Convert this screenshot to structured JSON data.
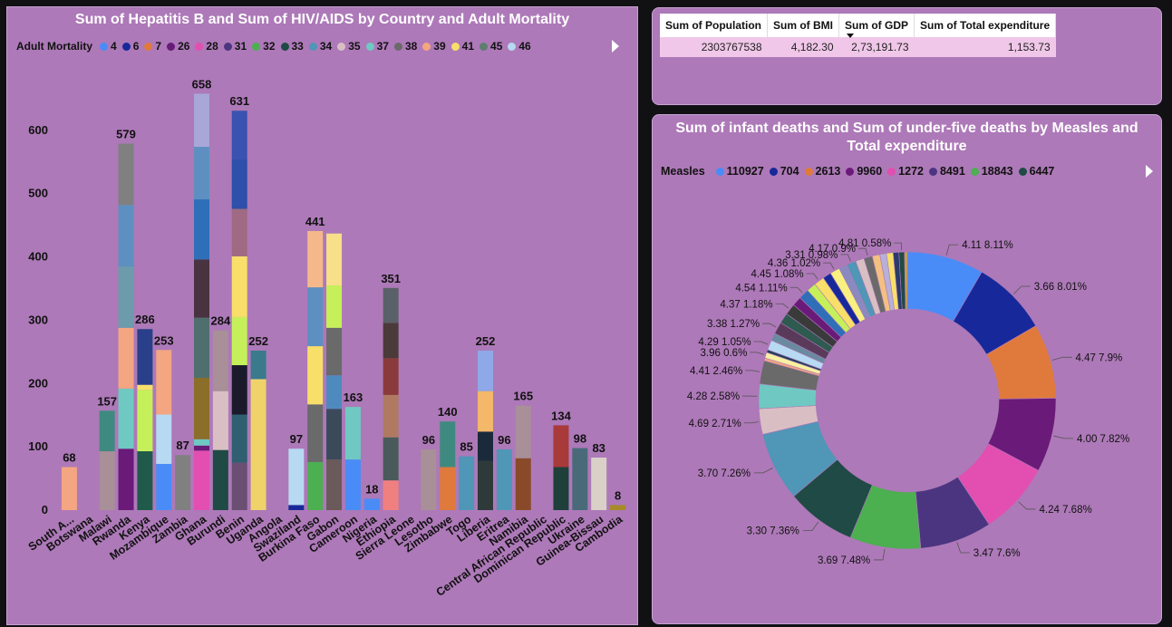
{
  "bar_chart": {
    "title": "Sum of Hepatitis B and Sum of HIV/AIDS by Country and Adult Mortality",
    "legend_title": "Adult Mortality",
    "legend": [
      {
        "label": "4",
        "color": "#4a8cf7"
      },
      {
        "label": "6",
        "color": "#17299a"
      },
      {
        "label": "7",
        "color": "#e07a3c"
      },
      {
        "label": "26",
        "color": "#6a1a78"
      },
      {
        "label": "28",
        "color": "#e24fb0"
      },
      {
        "label": "31",
        "color": "#4b3580"
      },
      {
        "label": "32",
        "color": "#4caf50"
      },
      {
        "label": "33",
        "color": "#204a45"
      },
      {
        "label": "34",
        "color": "#4f96b7"
      },
      {
        "label": "35",
        "color": "#d9bfc3"
      },
      {
        "label": "37",
        "color": "#6fc9c2"
      },
      {
        "label": "38",
        "color": "#6a6a6a"
      },
      {
        "label": "39",
        "color": "#f4a582"
      },
      {
        "label": "41",
        "color": "#f8df6a"
      },
      {
        "label": "45",
        "color": "#5d7f6e"
      },
      {
        "label": "46",
        "color": "#b7d9f2"
      }
    ]
  },
  "chart_data": [
    {
      "type": "bar",
      "stacked": true,
      "title": "Sum of Hepatitis B and Sum of HIV/AIDS by Country and Adult Mortality",
      "xlabel": "",
      "ylabel": "",
      "ylim": [
        0,
        680
      ],
      "yticks": [
        0,
        100,
        200,
        300,
        400,
        500,
        600
      ],
      "categories": [
        "South A...",
        "Botswana",
        "Malawi",
        "Rwanda",
        "Kenya",
        "Mozambique",
        "Zambia",
        "Ghana",
        "Burundi",
        "Benin",
        "Uganda",
        "Angola",
        "Swaziland",
        "Burkina Faso",
        "Gabon",
        "Cameroon",
        "Nigeria",
        "Ethiopia",
        "Sierra Leone",
        "Lesotho",
        "Zimbabwe",
        "Togo",
        "Liberia",
        "Eritrea",
        "Namibia",
        "Central African Republic",
        "Dominican Republic",
        "Ukraine",
        "Guinea-Bissau",
        "Cambodia"
      ],
      "bars": [
        {
          "total": 68,
          "segments": [
            {
              "v": 68,
              "c": "#f4a582"
            }
          ]
        },
        {
          "total": 0,
          "segments": []
        },
        {
          "total": 157,
          "segments": [
            {
              "v": 93,
              "c": "#a88f98"
            },
            {
              "v": 64,
              "c": "#3f8a80"
            }
          ]
        },
        {
          "total": 579,
          "segments": [
            {
              "v": 97,
              "c": "#6a1a78"
            },
            {
              "v": 95,
              "c": "#6fc9c2"
            },
            {
              "v": 96,
              "c": "#f4a582"
            },
            {
              "v": 97,
              "c": "#6c9bab"
            },
            {
              "v": 97,
              "c": "#5d90c0"
            },
            {
              "v": 97,
              "c": "#808080"
            }
          ]
        },
        {
          "total": 286,
          "segments": [
            {
              "v": 93,
              "c": "#1f5a4a"
            },
            {
              "v": 97,
              "c": "#c6f05a"
            },
            {
              "v": 8,
              "c": "#f8df6a"
            },
            {
              "v": 88,
              "c": "#2a3f8a"
            }
          ]
        },
        {
          "total": 253,
          "segments": [
            {
              "v": 73,
              "c": "#4a8cf7"
            },
            {
              "v": 78,
              "c": "#b7d9f2"
            },
            {
              "v": 102,
              "c": "#f4a582"
            }
          ]
        },
        {
          "total": 87,
          "segments": [
            {
              "v": 87,
              "c": "#808080"
            }
          ]
        },
        {
          "total": 658,
          "segments": [
            {
              "v": 94,
              "c": "#e24fb0"
            },
            {
              "v": 8,
              "c": "#6a1a78"
            },
            {
              "v": 10,
              "c": "#6fc9c2"
            },
            {
              "v": 97,
              "c": "#8b6e2a"
            },
            {
              "v": 95,
              "c": "#4f6f6e"
            },
            {
              "v": 92,
              "c": "#4a3340"
            },
            {
              "v": 95,
              "c": "#2f6fb8"
            },
            {
              "v": 83,
              "c": "#5d90c0"
            },
            {
              "v": 84,
              "c": "#a9a6d8"
            }
          ]
        },
        {
          "total": 284,
          "segments": [
            {
              "v": 95,
              "c": "#204a45"
            },
            {
              "v": 93,
              "c": "#d9bfc3"
            },
            {
              "v": 96,
              "c": "#a88f98"
            }
          ]
        },
        {
          "total": 631,
          "segments": [
            {
              "v": 75,
              "c": "#6a4f72"
            },
            {
              "v": 76,
              "c": "#2f5f70"
            },
            {
              "v": 78,
              "c": "#1a1a2a"
            },
            {
              "v": 76,
              "c": "#c6f05a"
            },
            {
              "v": 96,
              "c": "#f8df6a"
            },
            {
              "v": 75,
              "c": "#a06a82"
            },
            {
              "v": 78,
              "c": "#2e4faa"
            },
            {
              "v": 77,
              "c": "#3a52b0"
            }
          ]
        },
        {
          "total": 252,
          "segments": [
            {
              "v": 207,
              "c": "#f0d26a"
            },
            {
              "v": 45,
              "c": "#3a7a8c"
            }
          ]
        },
        {
          "total": 0,
          "segments": []
        },
        {
          "total": 97,
          "segments": [
            {
              "v": 8,
              "c": "#17299a"
            },
            {
              "v": 89,
              "c": "#b7d9f2"
            }
          ]
        },
        {
          "total": 441,
          "segments": [
            {
              "v": 76,
              "c": "#4caf50"
            },
            {
              "v": 91,
              "c": "#6a6a6a"
            },
            {
              "v": 92,
              "c": "#f8df6a"
            },
            {
              "v": 93,
              "c": "#5d90c0"
            },
            {
              "v": 89,
              "c": "#f4b88a"
            }
          ]
        },
        {
          "total": 437,
          "segments": [
            {
              "v": 80,
              "c": "#6a5a5a"
            },
            {
              "v": 80,
              "c": "#3a4a5a"
            },
            {
              "v": 53,
              "c": "#4f8abf"
            },
            {
              "v": 75,
              "c": "#6a6a6a"
            },
            {
              "v": 67,
              "c": "#c6f05a"
            },
            {
              "v": 82,
              "c": "#f8df8a"
            }
          ]
        },
        {
          "total": 163,
          "segments": [
            {
              "v": 80,
              "c": "#4a8cf7"
            },
            {
              "v": 83,
              "c": "#6fc9c2"
            }
          ]
        },
        {
          "total": 18,
          "segments": [
            {
              "v": 18,
              "c": "#4a8cf7"
            }
          ]
        },
        {
          "total": 351,
          "segments": [
            {
              "v": 47,
              "c": "#f08080"
            },
            {
              "v": 68,
              "c": "#4a5a5a"
            },
            {
              "v": 67,
              "c": "#b07a62"
            },
            {
              "v": 58,
              "c": "#8a3a3a"
            },
            {
              "v": 56,
              "c": "#4a3a3a"
            },
            {
              "v": 55,
              "c": "#5a6068"
            }
          ]
        },
        {
          "total": 0,
          "segments": []
        },
        {
          "total": 96,
          "segments": [
            {
              "v": 96,
              "c": "#a88f98"
            }
          ]
        },
        {
          "total": 140,
          "segments": [
            {
              "v": 68,
              "c": "#e07a3c"
            },
            {
              "v": 72,
              "c": "#3f8a80"
            }
          ]
        },
        {
          "total": 85,
          "segments": [
            {
              "v": 85,
              "c": "#4f96b7"
            }
          ]
        },
        {
          "total": 252,
          "segments": [
            {
              "v": 78,
              "c": "#2e3a3a"
            },
            {
              "v": 46,
              "c": "#1a2a3a"
            },
            {
              "v": 64,
              "c": "#f4b86a"
            },
            {
              "v": 64,
              "c": "#8fa8e8"
            }
          ]
        },
        {
          "total": 96,
          "segments": [
            {
              "v": 96,
              "c": "#4f96b7"
            }
          ]
        },
        {
          "total": 165,
          "segments": [
            {
              "v": 82,
              "c": "#8a4a2a"
            },
            {
              "v": 83,
              "c": "#a88f98"
            }
          ]
        },
        {
          "total": 0,
          "segments": []
        },
        {
          "total": 134,
          "segments": [
            {
              "v": 68,
              "c": "#1f3f3a"
            },
            {
              "v": 66,
              "c": "#a83a3a"
            }
          ]
        },
        {
          "total": 98,
          "segments": [
            {
              "v": 98,
              "c": "#4a6a7a"
            }
          ]
        },
        {
          "total": 83,
          "segments": [
            {
              "v": 83,
              "c": "#d9d0c8"
            }
          ]
        },
        {
          "total": 8,
          "segments": [
            {
              "v": 8,
              "c": "#a88a28"
            }
          ]
        }
      ],
      "labels": [
        "68",
        "",
        "157",
        "579",
        "286",
        "253",
        "87",
        "658",
        "284",
        "631",
        "252",
        "",
        "97",
        "441",
        "",
        "163",
        "18",
        "351",
        "",
        "96",
        "140",
        "85",
        "252",
        "96",
        "165",
        "",
        "134",
        "98",
        "83",
        "8"
      ]
    },
    {
      "type": "pie",
      "title": "Sum of infant deaths and Sum of under-five deaths by Measles and Total expenditure",
      "donut": true,
      "slices": [
        {
          "label": "4.11 8.11%",
          "value": 8.11,
          "color": "#4a8cf7"
        },
        {
          "label": "3.66 8.01%",
          "value": 8.01,
          "color": "#17299a"
        },
        {
          "label": "4.47 7.9%",
          "value": 7.9,
          "color": "#e07a3c"
        },
        {
          "label": "4.00 7.82%",
          "value": 7.82,
          "color": "#6a1a78"
        },
        {
          "label": "4.24 7.68%",
          "value": 7.68,
          "color": "#e24fb0"
        },
        {
          "label": "3.47 7.6%",
          "value": 7.6,
          "color": "#4b3580"
        },
        {
          "label": "3.69 7.48%",
          "value": 7.48,
          "color": "#4caf50"
        },
        {
          "label": "3.30 7.36%",
          "value": 7.36,
          "color": "#204a45"
        },
        {
          "label": "3.70 7.26%",
          "value": 7.26,
          "color": "#4f96b7"
        },
        {
          "label": "4.69 2.71%",
          "value": 2.71,
          "color": "#d9bfc3"
        },
        {
          "label": "4.28 2.58%",
          "value": 2.58,
          "color": "#6fc9c2"
        },
        {
          "label": "4.41 2.46%",
          "value": 2.46,
          "color": "#6a6a6a"
        },
        {
          "label": "",
          "value": 0.3,
          "color": "#f4a582"
        },
        {
          "label": "3.96 0.6%",
          "value": 0.6,
          "color": "#f8f0a0"
        },
        {
          "label": "",
          "value": 0.3,
          "color": "#1f3f5a"
        },
        {
          "label": "4.29 1.05%",
          "value": 1.05,
          "color": "#b7d9f2"
        },
        {
          "label": "",
          "value": 0.8,
          "color": "#6a8aa0"
        },
        {
          "label": "3.38 1.27%",
          "value": 1.27,
          "color": "#5a3a5a"
        },
        {
          "label": "",
          "value": 1.1,
          "color": "#2e5a50"
        },
        {
          "label": "4.37 1.18%",
          "value": 1.18,
          "color": "#3a3a3a"
        },
        {
          "label": "",
          "value": 1.0,
          "color": "#6a1a78"
        },
        {
          "label": "4.54 1.11%",
          "value": 1.11,
          "color": "#2f6fb8"
        },
        {
          "label": "",
          "value": 1.0,
          "color": "#c6f05a"
        },
        {
          "label": "4.45 1.08%",
          "value": 1.08,
          "color": "#f8df6a"
        },
        {
          "label": "",
          "value": 0.9,
          "color": "#17299a"
        },
        {
          "label": "4.36 1.02%",
          "value": 1.02,
          "color": "#f8f080"
        },
        {
          "label": "",
          "value": 0.9,
          "color": "#8a8ac0"
        },
        {
          "label": "3.31 0.98%",
          "value": 0.98,
          "color": "#4f96b7"
        },
        {
          "label": "",
          "value": 0.9,
          "color": "#d9bfc3"
        },
        {
          "label": "4.17 0.9%",
          "value": 0.9,
          "color": "#6a6a6a"
        },
        {
          "label": "",
          "value": 0.8,
          "color": "#f4c080"
        },
        {
          "label": "",
          "value": 0.7,
          "color": "#b7b0d8"
        },
        {
          "label": "",
          "value": 0.7,
          "color": "#f8df6a"
        },
        {
          "label": "",
          "value": 0.6,
          "color": "#2a3a6a"
        },
        {
          "label": "4.81 0.58%",
          "value": 0.58,
          "color": "#204a45"
        },
        {
          "label": "",
          "value": 0.3,
          "color": "#c8a040"
        }
      ]
    }
  ],
  "table": {
    "headers": [
      "Sum of Population",
      "Sum of BMI",
      "Sum of GDP",
      "Sum of Total expenditure"
    ],
    "rows": [
      [
        "2303767538",
        "4,182.30",
        "2,73,191.73",
        "1,153.73"
      ]
    ]
  },
  "pie_chart": {
    "title": "Sum of infant deaths and Sum of under-five deaths by Measles and Total expenditure",
    "legend_title": "Measles",
    "legend": [
      {
        "label": "110927",
        "color": "#4a8cf7"
      },
      {
        "label": "704",
        "color": "#17299a"
      },
      {
        "label": "2613",
        "color": "#e07a3c"
      },
      {
        "label": "9960",
        "color": "#6a1a78"
      },
      {
        "label": "1272",
        "color": "#e24fb0"
      },
      {
        "label": "8491",
        "color": "#4b3580"
      },
      {
        "label": "18843",
        "color": "#4caf50"
      },
      {
        "label": "6447",
        "color": "#204a45"
      }
    ]
  }
}
